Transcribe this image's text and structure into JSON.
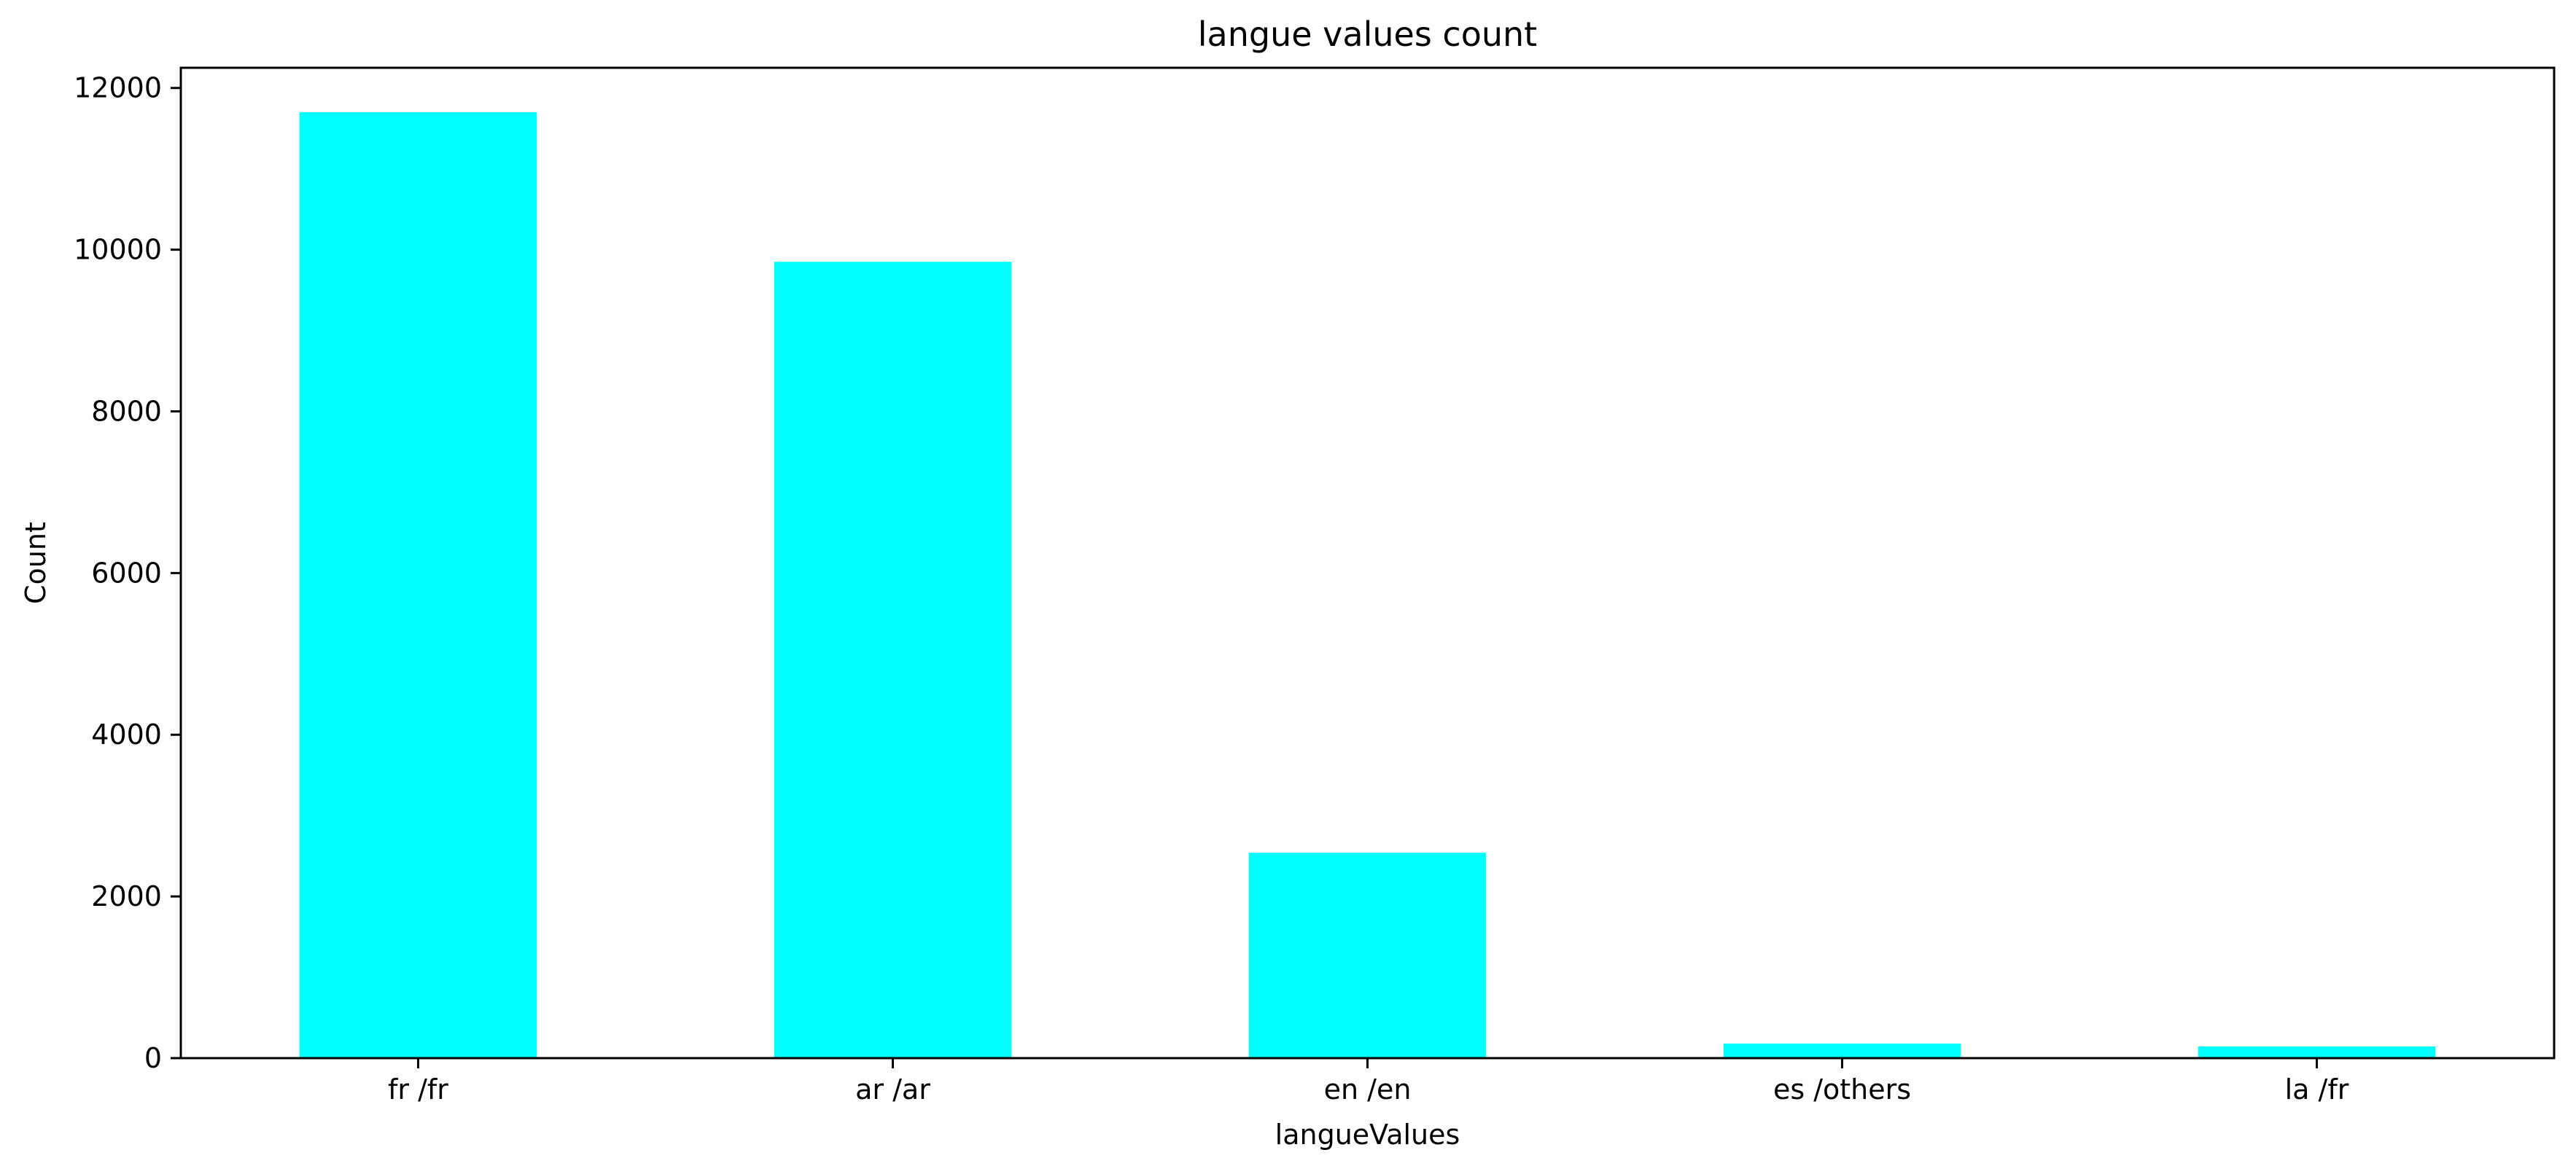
{
  "chart_data": {
    "type": "bar",
    "title": "langue values count",
    "xlabel": "langueValues",
    "ylabel": "Count",
    "categories": [
      "fr /fr",
      "ar /ar",
      "en /en",
      "es /others",
      "la /fr"
    ],
    "values": [
      11700,
      9850,
      2540,
      180,
      145
    ],
    "ylim": [
      0,
      12250
    ],
    "yticks": [
      0,
      2000,
      4000,
      6000,
      8000,
      10000,
      12000
    ],
    "bar_color": "#00ffff",
    "grid": false,
    "legend": "none"
  }
}
